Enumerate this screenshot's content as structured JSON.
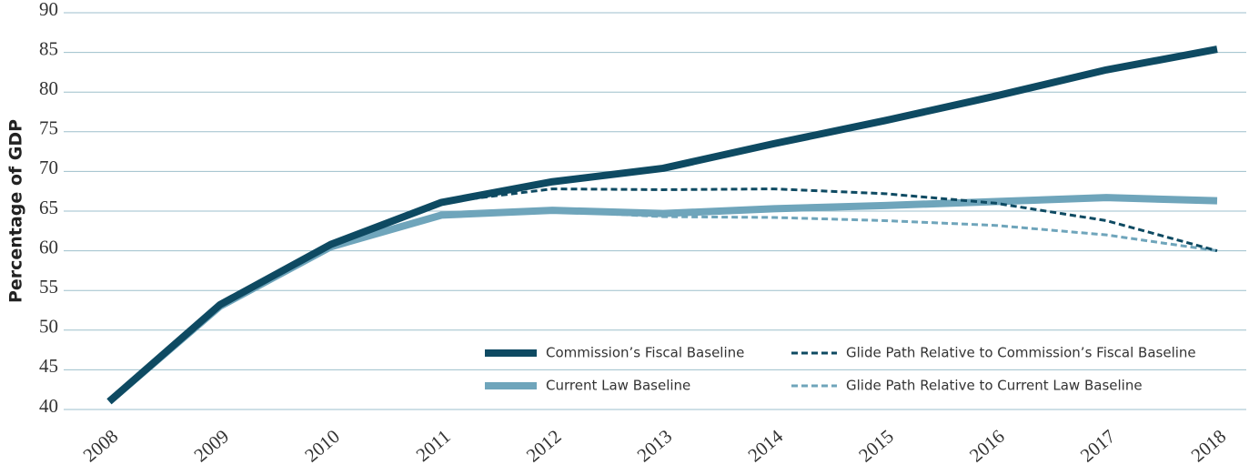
{
  "chart_data": {
    "type": "line",
    "y_label": "Percentage of GDP",
    "categories": [
      "2008",
      "2009",
      "2010",
      "2011",
      "2012",
      "2013",
      "2014",
      "2015",
      "2016",
      "2017",
      "2018"
    ],
    "series": [
      {
        "name": "Commission’s Fiscal Baseline",
        "color": "#0e4a62",
        "style": "solid",
        "values": [
          41,
          53.2,
          60.8,
          66.1,
          68.7,
          70.4,
          73.5,
          76.4,
          79.5,
          82.8,
          85.4
        ]
      },
      {
        "name": "Current Law Baseline",
        "color": "#6fa5bb",
        "style": "solid",
        "values": [
          41,
          53,
          60.5,
          64.5,
          65.1,
          64.7,
          65.3,
          65.7,
          66.2,
          66.7,
          66.3
        ]
      },
      {
        "name": "Glide Path Relative to Commission’s Fiscal Baseline",
        "color": "#0e4a62",
        "style": "dashed",
        "values": [
          null,
          null,
          null,
          66.1,
          67.8,
          67.7,
          67.8,
          67.2,
          66.0,
          63.8,
          60.0
        ]
      },
      {
        "name": "Glide Path Relative to Current Law Baseline",
        "color": "#6fa5bb",
        "style": "dashed",
        "values": [
          null,
          null,
          null,
          64.5,
          65.0,
          64.3,
          64.2,
          63.8,
          63.2,
          62.0,
          60.0
        ]
      }
    ],
    "ylim": [
      40,
      90
    ],
    "yticks": [
      40,
      45,
      50,
      55,
      60,
      65,
      70,
      75,
      80,
      85,
      90
    ],
    "grid": true
  }
}
